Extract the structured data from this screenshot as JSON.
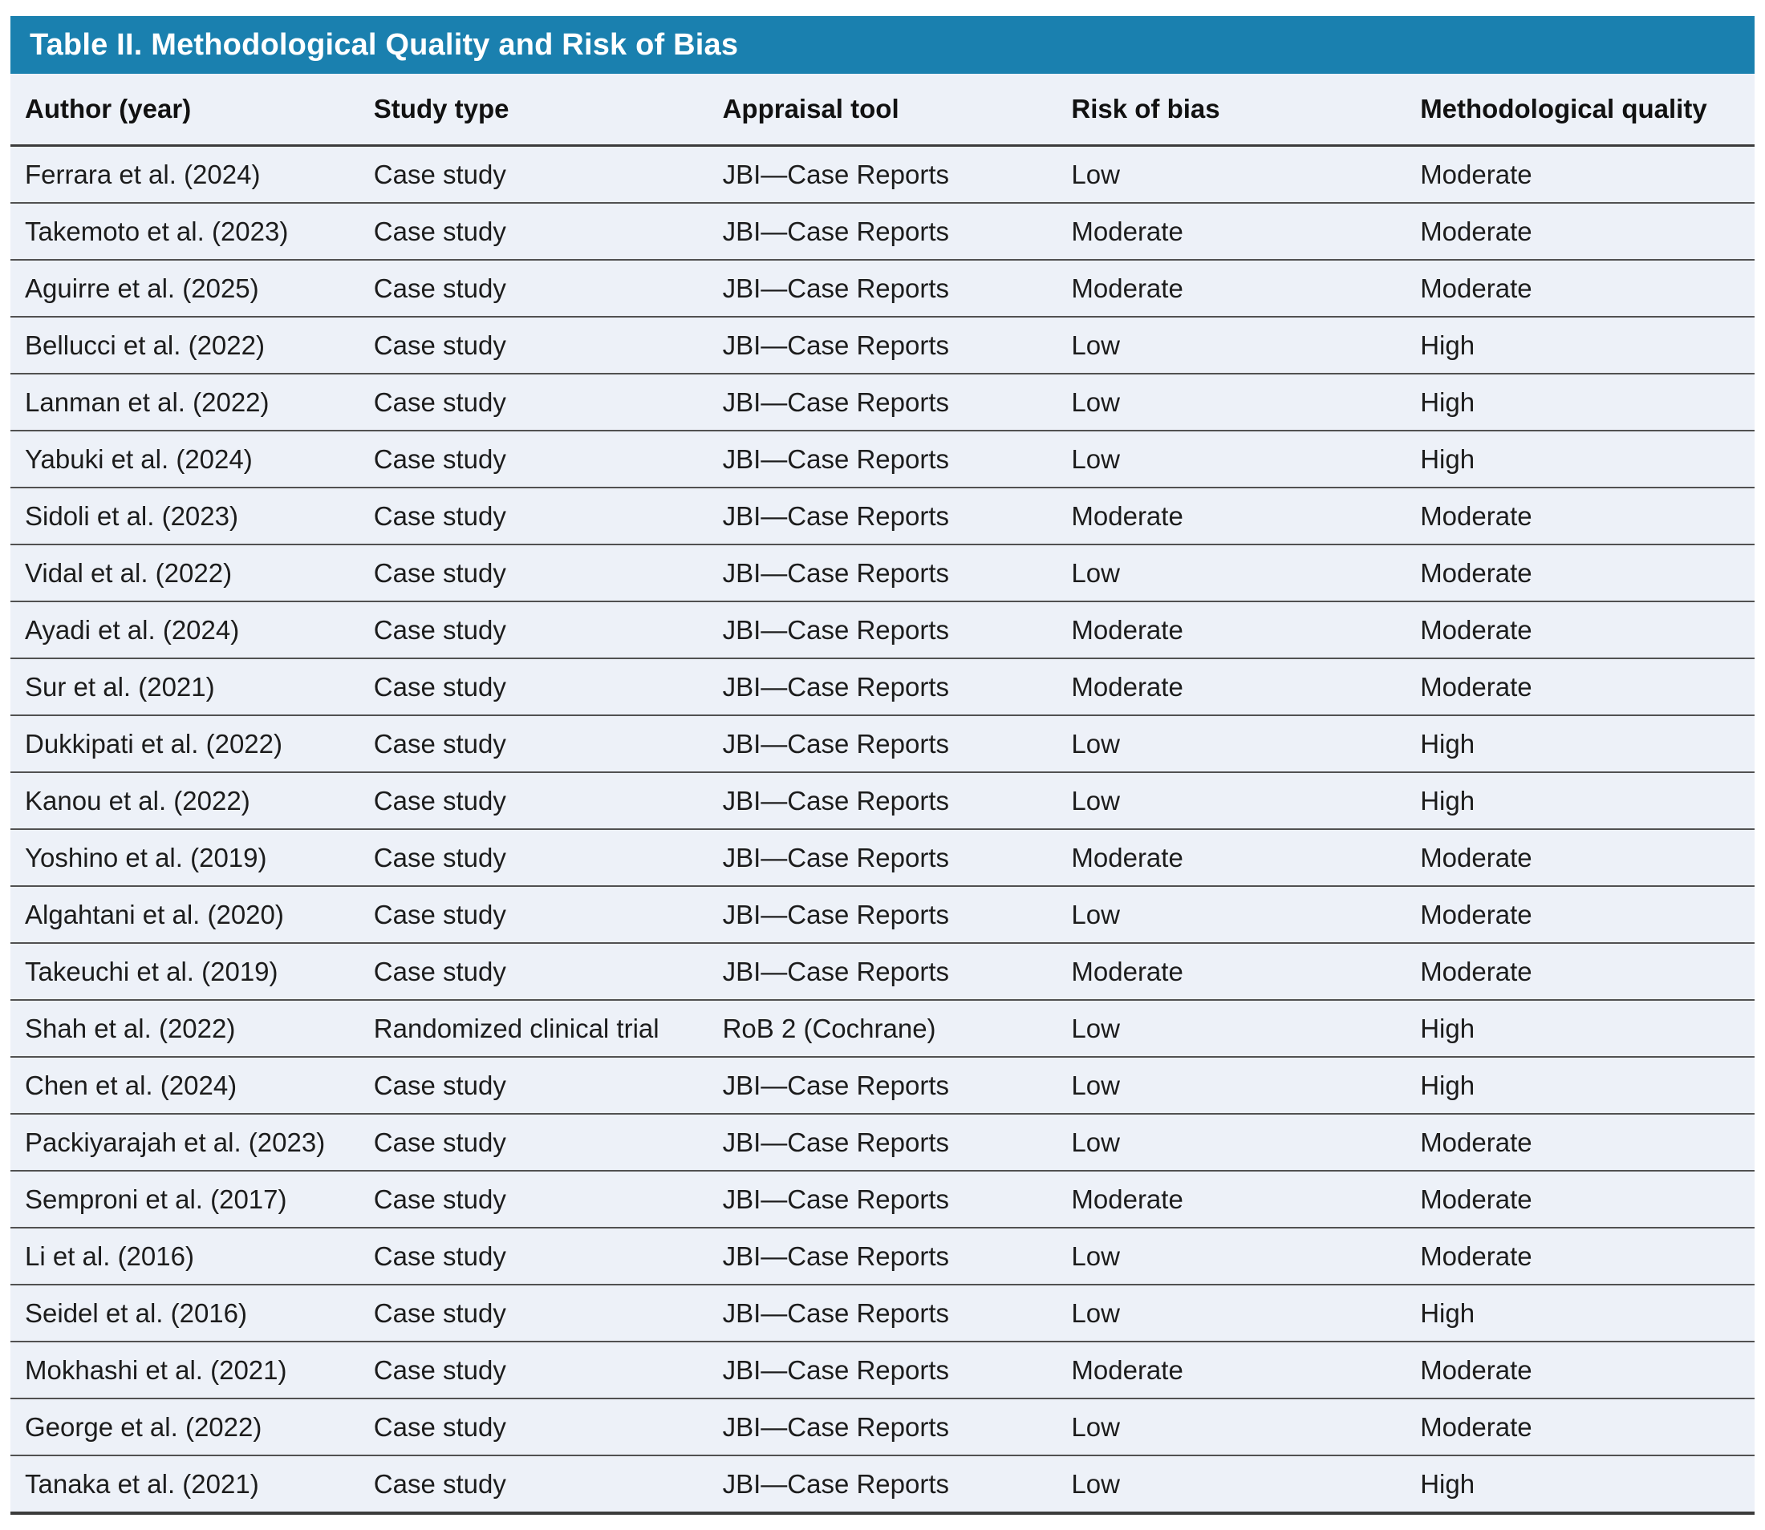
{
  "colors": {
    "title_bar_bg": "#1a80af",
    "title_text": "#ffffff",
    "row_bg": "#edf1f8",
    "header_text": "#111111",
    "body_text": "#1c1c1c",
    "header_rule": "#3b3b3b",
    "row_rule": "#515151"
  },
  "table": {
    "title": "Table II. Methodological Quality and Risk of Bias",
    "columns": [
      "Author (year)",
      "Study type",
      "Appraisal tool",
      "Risk of bias",
      "Methodological quality"
    ],
    "rows": [
      [
        "Ferrara et al. (2024)",
        "Case study",
        "JBI—Case Reports",
        "Low",
        "Moderate"
      ],
      [
        "Takemoto et al. (2023)",
        "Case study",
        "JBI—Case Reports",
        "Moderate",
        "Moderate"
      ],
      [
        "Aguirre et al. (2025)",
        "Case study",
        "JBI—Case Reports",
        "Moderate",
        "Moderate"
      ],
      [
        "Bellucci et al. (2022)",
        "Case study",
        "JBI—Case Reports",
        "Low",
        "High"
      ],
      [
        "Lanman et al. (2022)",
        "Case study",
        "JBI—Case Reports",
        "Low",
        "High"
      ],
      [
        "Yabuki et al. (2024)",
        "Case study",
        "JBI—Case Reports",
        "Low",
        "High"
      ],
      [
        "Sidoli et al. (2023)",
        "Case study",
        "JBI—Case Reports",
        "Moderate",
        "Moderate"
      ],
      [
        "Vidal et al. (2022)",
        "Case study",
        "JBI—Case Reports",
        "Low",
        "Moderate"
      ],
      [
        "Ayadi et al. (2024)",
        "Case study",
        "JBI—Case Reports",
        "Moderate",
        "Moderate"
      ],
      [
        "Sur et al. (2021)",
        "Case study",
        "JBI—Case Reports",
        "Moderate",
        "Moderate"
      ],
      [
        "Dukkipati et al. (2022)",
        "Case study",
        "JBI—Case Reports",
        "Low",
        "High"
      ],
      [
        "Kanou et al. (2022)",
        "Case study",
        "JBI—Case Reports",
        "Low",
        "High"
      ],
      [
        "Yoshino et al. (2019)",
        "Case study",
        "JBI—Case Reports",
        "Moderate",
        "Moderate"
      ],
      [
        "Algahtani et al. (2020)",
        "Case study",
        "JBI—Case Reports",
        "Low",
        "Moderate"
      ],
      [
        "Takeuchi et al. (2019)",
        "Case study",
        "JBI—Case Reports",
        "Moderate",
        "Moderate"
      ],
      [
        "Shah et al. (2022)",
        "Randomized clinical trial",
        "RoB 2 (Cochrane)",
        "Low",
        "High"
      ],
      [
        "Chen et al. (2024)",
        "Case study",
        "JBI—Case Reports",
        "Low",
        "High"
      ],
      [
        "Packiyarajah et al. (2023)",
        "Case study",
        "JBI—Case Reports",
        "Low",
        "Moderate"
      ],
      [
        "Semproni et al. (2017)",
        "Case study",
        "JBI—Case Reports",
        "Moderate",
        "Moderate"
      ],
      [
        "Li et al. (2016)",
        "Case study",
        "JBI—Case Reports",
        "Low",
        "Moderate"
      ],
      [
        "Seidel et al. (2016)",
        "Case study",
        "JBI—Case Reports",
        "Low",
        "High"
      ],
      [
        "Mokhashi et al. (2021)",
        "Case study",
        "JBI—Case Reports",
        "Moderate",
        "Moderate"
      ],
      [
        "George et al. (2022)",
        "Case study",
        "JBI—Case Reports",
        "Low",
        "Moderate"
      ],
      [
        "Tanaka et al. (2021)",
        "Case study",
        "JBI—Case Reports",
        "Low",
        "High"
      ]
    ]
  }
}
